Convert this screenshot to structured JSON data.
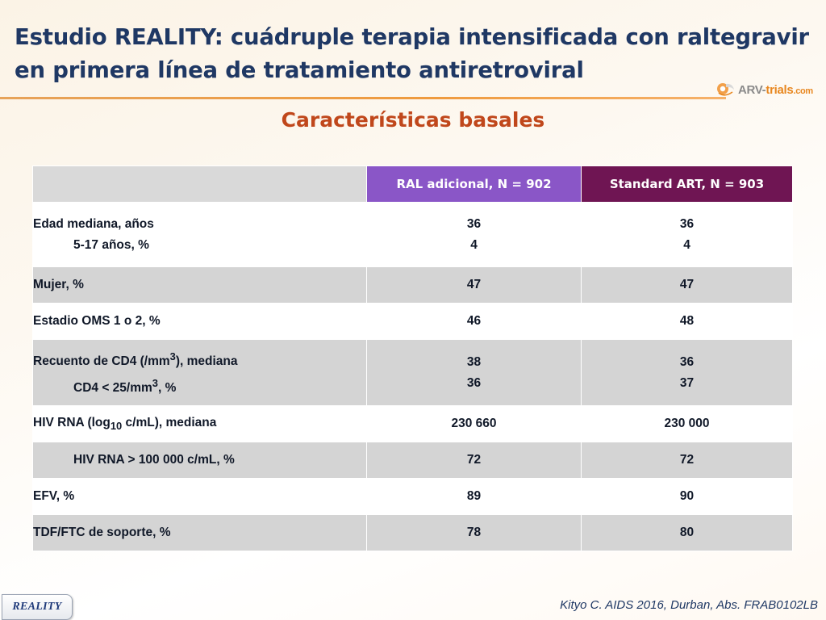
{
  "title": {
    "line1": "Estudio REALITY: cuádruple terapia intensificada con raltegravir",
    "line2": "en primera línea de tratamiento antiretroviral"
  },
  "logo": {
    "text_prefix": "ARV-",
    "text_accent": "trials",
    "text_suffix": ".com",
    "icon": "arv-trials-logo-icon"
  },
  "subtitle": "Características basales",
  "table": {
    "headers": {
      "corner": "",
      "ral": "RAL adicional, N = 902",
      "std": "Standard ART, N = 903"
    },
    "rows": [
      {
        "l1": "Edad mediana, años",
        "l2": "5-17 años, %",
        "ral1": "36",
        "ral2": "4",
        "std1": "36",
        "std2": "4"
      },
      {
        "label": "Mujer, %",
        "ral": "47",
        "std": "47"
      },
      {
        "label": "Estadio OMS 1 o 2, %",
        "ral": "46",
        "std": "48"
      },
      {
        "l1_pre": "Recuento de CD4 (/mm",
        "l1_sup": "3",
        "l1_post": "), mediana",
        "l2_pre": "CD4 < 25/mm",
        "l2_sup": "3",
        "l2_post": ", %",
        "ral1": "38",
        "ral2": "36",
        "std1": "36",
        "std2": "37"
      },
      {
        "pre": "HIV RNA (log",
        "sub": "10",
        "post": " c/mL), mediana",
        "ral": "230 660",
        "std": "230 000"
      },
      {
        "label": "HIV RNA > 100 000 c/mL, %",
        "ral": "72",
        "std": "72"
      },
      {
        "label": "EFV, %",
        "ral": "89",
        "std": "90"
      },
      {
        "label": "TDF/FTC de soporte, %",
        "ral": "78",
        "std": "80"
      }
    ]
  },
  "footer": {
    "tag": "REALITY",
    "citation": "Kityo C. AIDS 2016, Durban, Abs. FRAB0102LB"
  },
  "colors": {
    "title": "#1f3864",
    "subtitle": "#c0471b",
    "header_ral": "#8a56c7",
    "header_std": "#6f1553",
    "row_gray": "#d4d4d4"
  }
}
